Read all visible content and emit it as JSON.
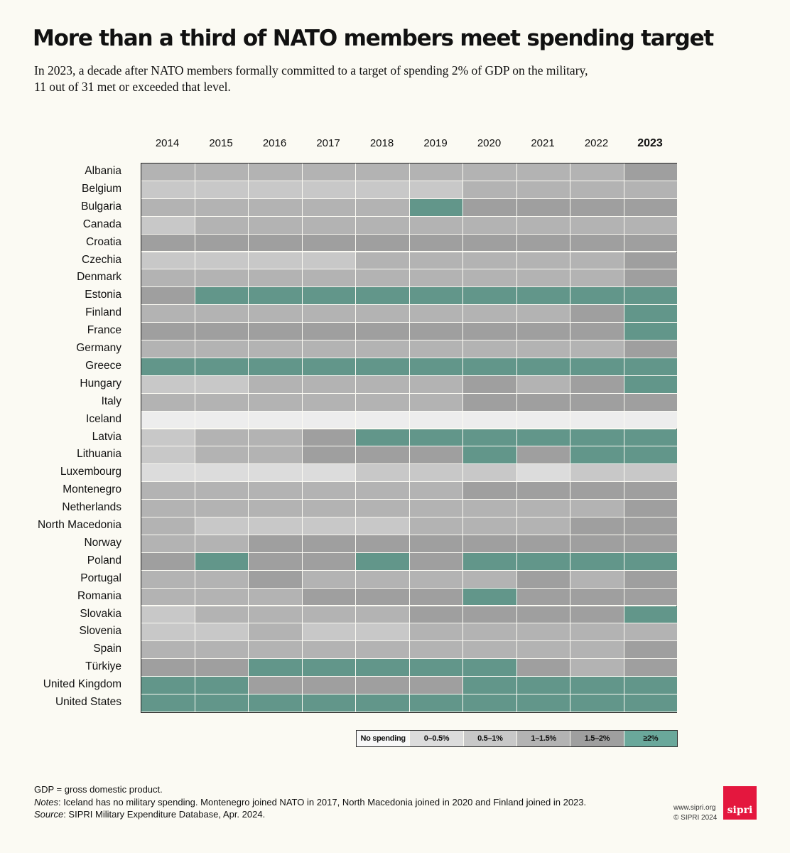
{
  "title": "More than a third of NATO members meet spending target",
  "subtitle": {
    "line1": "In 2023, a decade after NATO members formally committed to a target of spending 2% of GDP on the military,",
    "line2": "11 out of 31 met or exceeded that level."
  },
  "chart_data": {
    "type": "heatmap",
    "title": "More than a third of NATO members meet spending target",
    "x": [
      "2014",
      "2015",
      "2016",
      "2017",
      "2018",
      "2019",
      "2020",
      "2021",
      "2022",
      "2023"
    ],
    "highlight_year": "2023",
    "categories_legend": [
      "No spending",
      "0–0.5%",
      "0.5–1%",
      "1–1.5%",
      "1.5–2%",
      "≥2%"
    ],
    "value_coding": "0 = No spending, 1 = 0–0.5%, 2 = 0.5–1%, 3 = 1–1.5%, 4 = 1.5–2%, 5 = ≥2% of GDP",
    "rows": [
      {
        "country": "Albania",
        "values": [
          3,
          3,
          3,
          3,
          3,
          3,
          3,
          3,
          3,
          4
        ]
      },
      {
        "country": "Belgium",
        "values": [
          2,
          2,
          2,
          2,
          2,
          2,
          3,
          3,
          3,
          3
        ]
      },
      {
        "country": "Bulgaria",
        "values": [
          3,
          3,
          3,
          3,
          3,
          5,
          4,
          4,
          4,
          4
        ]
      },
      {
        "country": "Canada",
        "values": [
          2,
          3,
          3,
          3,
          3,
          3,
          3,
          3,
          3,
          3
        ]
      },
      {
        "country": "Croatia",
        "values": [
          4,
          4,
          4,
          4,
          4,
          4,
          4,
          4,
          4,
          4
        ]
      },
      {
        "country": "Czechia",
        "values": [
          2,
          2,
          2,
          2,
          3,
          3,
          3,
          3,
          3,
          4
        ]
      },
      {
        "country": "Denmark",
        "values": [
          3,
          3,
          3,
          3,
          3,
          3,
          3,
          3,
          3,
          4
        ]
      },
      {
        "country": "Estonia",
        "values": [
          4,
          5,
          5,
          5,
          5,
          5,
          5,
          5,
          5,
          5
        ]
      },
      {
        "country": "Finland",
        "values": [
          3,
          3,
          3,
          3,
          3,
          3,
          3,
          3,
          4,
          5
        ]
      },
      {
        "country": "France",
        "values": [
          4,
          4,
          4,
          4,
          4,
          4,
          4,
          4,
          4,
          5
        ]
      },
      {
        "country": "Germany",
        "values": [
          3,
          3,
          3,
          3,
          3,
          3,
          3,
          3,
          3,
          4
        ]
      },
      {
        "country": "Greece",
        "values": [
          5,
          5,
          5,
          5,
          5,
          5,
          5,
          5,
          5,
          5
        ]
      },
      {
        "country": "Hungary",
        "values": [
          2,
          2,
          3,
          3,
          3,
          3,
          4,
          3,
          4,
          5
        ]
      },
      {
        "country": "Italy",
        "values": [
          3,
          3,
          3,
          3,
          3,
          3,
          4,
          4,
          4,
          4
        ]
      },
      {
        "country": "Iceland",
        "values": [
          0,
          0,
          0,
          0,
          0,
          0,
          0,
          0,
          0,
          0
        ]
      },
      {
        "country": "Latvia",
        "values": [
          2,
          3,
          3,
          4,
          5,
          5,
          5,
          5,
          5,
          5
        ]
      },
      {
        "country": "Lithuania",
        "values": [
          2,
          3,
          3,
          4,
          4,
          4,
          5,
          4,
          5,
          5
        ]
      },
      {
        "country": "Luxembourg",
        "values": [
          1,
          1,
          1,
          1,
          2,
          2,
          2,
          1,
          2,
          2
        ]
      },
      {
        "country": "Montenegro",
        "values": [
          3,
          3,
          3,
          3,
          3,
          3,
          4,
          4,
          4,
          4
        ]
      },
      {
        "country": "Netherlands",
        "values": [
          3,
          3,
          3,
          3,
          3,
          3,
          3,
          3,
          3,
          4
        ]
      },
      {
        "country": "North Macedonia",
        "values": [
          3,
          2,
          2,
          2,
          2,
          3,
          3,
          3,
          4,
          4
        ]
      },
      {
        "country": "Norway",
        "values": [
          3,
          3,
          4,
          4,
          4,
          4,
          4,
          4,
          4,
          4
        ]
      },
      {
        "country": "Poland",
        "values": [
          4,
          5,
          4,
          4,
          5,
          4,
          5,
          5,
          5,
          5
        ]
      },
      {
        "country": "Portugal",
        "values": [
          3,
          3,
          4,
          3,
          3,
          3,
          3,
          4,
          3,
          4
        ]
      },
      {
        "country": "Romania",
        "values": [
          3,
          3,
          3,
          4,
          4,
          4,
          5,
          4,
          4,
          4
        ]
      },
      {
        "country": "Slovakia",
        "values": [
          2,
          3,
          3,
          3,
          3,
          4,
          4,
          4,
          4,
          5
        ]
      },
      {
        "country": "Slovenia",
        "values": [
          2,
          2,
          3,
          2,
          2,
          3,
          3,
          3,
          3,
          3
        ]
      },
      {
        "country": "Spain",
        "values": [
          3,
          3,
          3,
          3,
          3,
          3,
          3,
          3,
          3,
          4
        ]
      },
      {
        "country": "Türkiye",
        "values": [
          4,
          4,
          5,
          5,
          5,
          5,
          5,
          4,
          3,
          4
        ]
      },
      {
        "country": "United Kingdom",
        "values": [
          5,
          5,
          4,
          4,
          4,
          4,
          5,
          5,
          5,
          5
        ]
      },
      {
        "country": "United States",
        "values": [
          5,
          5,
          5,
          5,
          5,
          5,
          5,
          5,
          5,
          5
        ]
      }
    ]
  },
  "colors": {
    "background": "#fbfaf3",
    "scale": [
      "#ededed",
      "#dcdcdc",
      "#c8c8c8",
      "#b3b3b3",
      "#9f9f9f",
      "#62968a"
    ],
    "legend_top": "#6aa89b"
  },
  "legend": {
    "items": [
      {
        "label": "No spending",
        "color": "#f7f7f7"
      },
      {
        "label": "0–0.5%",
        "color": "#dcdcdc"
      },
      {
        "label": "0.5–1%",
        "color": "#c8c8c8"
      },
      {
        "label": "1–1.5%",
        "color": "#b3b3b3"
      },
      {
        "label": "1.5–2%",
        "color": "#9f9f9f"
      },
      {
        "label": "≥2%",
        "color": "#6aa89b"
      }
    ]
  },
  "notes": {
    "gdp": "GDP = gross domestic product.",
    "notes_label": "Notes",
    "notes_text": ": Iceland has no military spending. Montenegro joined NATO in 2017, North Macedonia joined in 2020 and Finland joined in 2023.",
    "source_label": "Source",
    "source_text": ": SIPRI Military Expenditure Database, Apr. 2024."
  },
  "credit": {
    "url": "www.sipri.org",
    "copyright": "© SIPRI 2024",
    "logo": "sipri"
  }
}
